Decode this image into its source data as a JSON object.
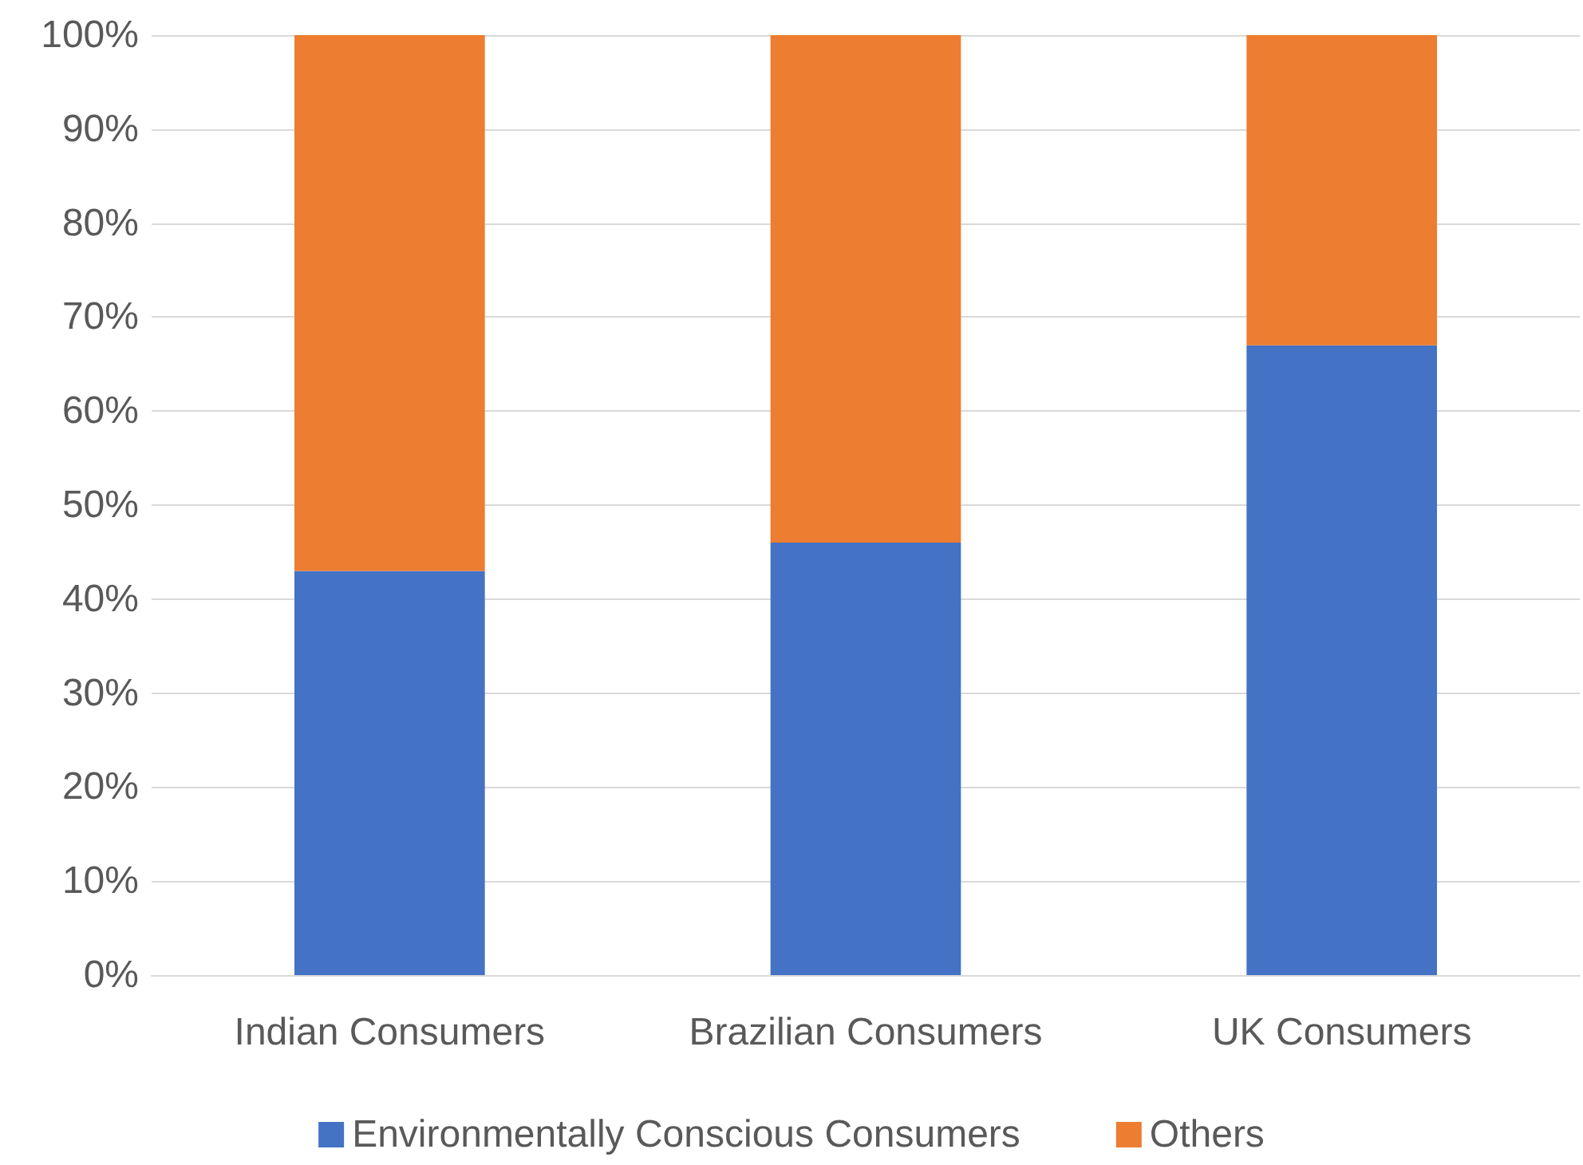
{
  "chart_data": {
    "type": "bar",
    "stacked": true,
    "categories": [
      "Indian Consumers",
      "Brazilian Consumers",
      "UK Consumers"
    ],
    "series": [
      {
        "name": "Environmentally Conscious Consumers",
        "color": "#4472c4",
        "values": [
          43,
          46,
          67
        ]
      },
      {
        "name": "Others",
        "color": "#ed7d31",
        "values": [
          57,
          54,
          33
        ]
      }
    ],
    "ylim": [
      0,
      100
    ],
    "yticks": [
      {
        "value": 0,
        "label": "0%"
      },
      {
        "value": 10,
        "label": "10%"
      },
      {
        "value": 20,
        "label": "20%"
      },
      {
        "value": 30,
        "label": "30%"
      },
      {
        "value": 40,
        "label": "40%"
      },
      {
        "value": 50,
        "label": "50%"
      },
      {
        "value": 60,
        "label": "60%"
      },
      {
        "value": 70,
        "label": "70%"
      },
      {
        "value": 80,
        "label": "80%"
      },
      {
        "value": 90,
        "label": "90%"
      },
      {
        "value": 100,
        "label": "100%"
      }
    ],
    "grid": "y",
    "legend": "bottom"
  }
}
